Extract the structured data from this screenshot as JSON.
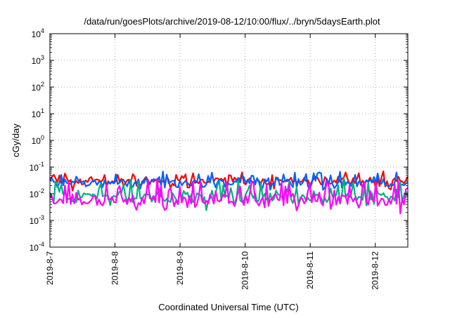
{
  "chart_data": {
    "type": "line",
    "title": "/data/run/goesPlots/archive/2019-08-12/10:00/flux/../bryn/5daysEarth.plot",
    "xlabel": "Coordinated Universal Time (UTC)",
    "ylabel": "cGy/day",
    "yscale": "log",
    "ylim": [
      0.0001,
      10000
    ],
    "xlim_days": [
      7,
      12.5
    ],
    "grid": true,
    "y_ticks": [
      {
        "base": "10",
        "exp": "-4",
        "value": 0.0001
      },
      {
        "base": "10",
        "exp": "-3",
        "value": 0.001
      },
      {
        "base": "10",
        "exp": "-2",
        "value": 0.01
      },
      {
        "base": "10",
        "exp": "-1",
        "value": 0.1
      },
      {
        "base": "10",
        "exp": "0",
        "value": 1
      },
      {
        "base": "10",
        "exp": "1",
        "value": 10
      },
      {
        "base": "10",
        "exp": "2",
        "value": 100
      },
      {
        "base": "10",
        "exp": "3",
        "value": 1000
      },
      {
        "base": "10",
        "exp": "4",
        "value": 10000
      }
    ],
    "x_ticks": [
      {
        "label": "2019-8-7",
        "day": 7
      },
      {
        "label": "2019-8-8",
        "day": 8
      },
      {
        "label": "2019-8-9",
        "day": 9
      },
      {
        "label": "2019-8-10",
        "day": 10
      },
      {
        "label": "2019-8-11",
        "day": 11
      },
      {
        "label": "2019-8-12",
        "day": 12
      }
    ],
    "series": [
      {
        "color": "#ff0000",
        "base": 0.03,
        "spread": 0.35,
        "spike": 2.0
      },
      {
        "color": "#0060ff",
        "base": 0.025,
        "spread": 0.45,
        "spike": 2.4
      },
      {
        "color": "#00b080",
        "base": 0.0075,
        "spread": 0.55,
        "spike": 4.0
      },
      {
        "color": "#ff00ff",
        "base": 0.0055,
        "spread": 0.6,
        "spike": 5.0
      }
    ]
  }
}
